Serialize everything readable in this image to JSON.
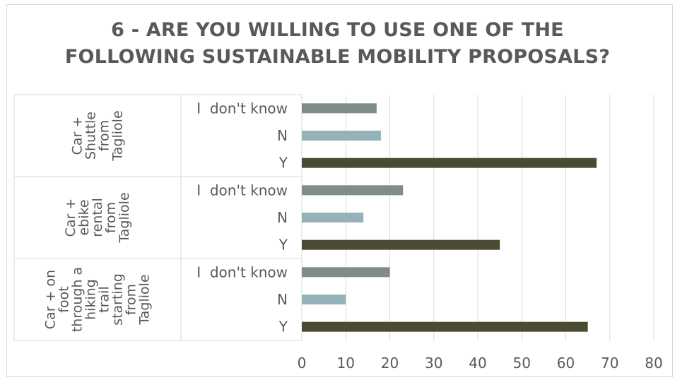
{
  "chart_data": {
    "type": "bar",
    "orientation": "horizontal",
    "title_lines": [
      "6 - ARE YOU WILLING TO USE ONE OF THE",
      "FOLLOWING SUSTAINABLE MOBILITY PROPOSALS?"
    ],
    "groups": [
      {
        "label_lines": [
          "Car +",
          "Shuttle",
          "from",
          "Tagliole"
        ],
        "bars": [
          {
            "label": "I  don't know",
            "value": 17
          },
          {
            "label": "N",
            "value": 18
          },
          {
            "label": "Y",
            "value": 67
          }
        ]
      },
      {
        "label_lines": [
          "Car +",
          "ebike",
          "rental",
          "from",
          "Tagliole"
        ],
        "bars": [
          {
            "label": "I  don't know",
            "value": 23
          },
          {
            "label": "N",
            "value": 14
          },
          {
            "label": "Y",
            "value": 45
          }
        ]
      },
      {
        "label_lines": [
          "Car + on",
          "foot",
          "through a",
          "hiking",
          "trail",
          "starting",
          "from",
          "Tagliole"
        ],
        "bars": [
          {
            "label": "I  don't know",
            "value": 20
          },
          {
            "label": "N",
            "value": 10
          },
          {
            "label": "Y",
            "value": 65
          }
        ]
      }
    ],
    "xlim": [
      0,
      80
    ],
    "xticks": [
      "0",
      "10",
      "20",
      "30",
      "40",
      "50",
      "60",
      "70",
      "80"
    ],
    "grid": true,
    "legend": "none",
    "colors": {
      "I  don't know": "#7f8c8a",
      "N": "#94b2b8",
      "Y": "#4b4a33"
    },
    "grid_color": "#d9d9d9",
    "text_color": "#595959"
  }
}
